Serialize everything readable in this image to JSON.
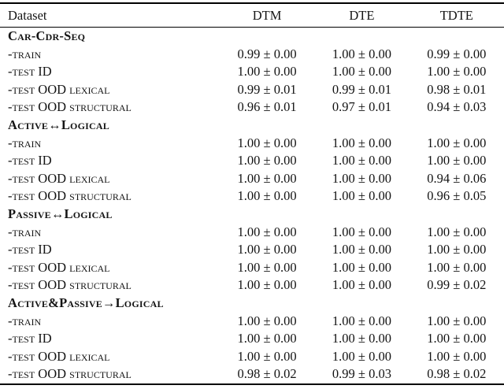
{
  "table": {
    "columns": [
      "Dataset",
      "DTM",
      "DTE",
      "TDTE"
    ],
    "sections": [
      {
        "title": "Car-Cdr-Seq",
        "rows": [
          {
            "label": "-train",
            "dtm": "0.99 ± 0.00",
            "dte": "1.00 ± 0.00",
            "tdte": "0.99 ± 0.00"
          },
          {
            "label": "-test ID",
            "dtm": "1.00 ± 0.00",
            "dte": "1.00 ± 0.00",
            "tdte": "1.00 ± 0.00"
          },
          {
            "label": "-test OOD lexical",
            "dtm": "0.99 ± 0.01",
            "dte": "0.99 ± 0.01",
            "tdte": "0.98 ± 0.01"
          },
          {
            "label": "-test OOD structural",
            "dtm": "0.96 ± 0.01",
            "dte": "0.97 ± 0.01",
            "tdte": "0.94 ± 0.03"
          }
        ]
      },
      {
        "title": "Active↔Logical",
        "rows": [
          {
            "label": "-train",
            "dtm": "1.00 ± 0.00",
            "dte": "1.00 ± 0.00",
            "tdte": "1.00 ± 0.00"
          },
          {
            "label": "-test ID",
            "dtm": "1.00 ± 0.00",
            "dte": "1.00 ± 0.00",
            "tdte": "1.00 ± 0.00"
          },
          {
            "label": "-test OOD lexical",
            "dtm": "1.00 ± 0.00",
            "dte": "1.00 ± 0.00",
            "tdte": "0.94 ± 0.06"
          },
          {
            "label": "-test OOD structural",
            "dtm": "1.00 ± 0.00",
            "dte": "1.00 ± 0.00",
            "tdte": "0.96 ± 0.05"
          }
        ]
      },
      {
        "title": "Passive↔Logical",
        "rows": [
          {
            "label": "-train",
            "dtm": "1.00 ± 0.00",
            "dte": "1.00 ± 0.00",
            "tdte": "1.00 ± 0.00"
          },
          {
            "label": "-test ID",
            "dtm": "1.00 ± 0.00",
            "dte": "1.00 ± 0.00",
            "tdte": "1.00 ± 0.00"
          },
          {
            "label": "-test OOD lexical",
            "dtm": "1.00 ± 0.00",
            "dte": "1.00 ± 0.00",
            "tdte": "1.00 ± 0.00"
          },
          {
            "label": "-test OOD structural",
            "dtm": "1.00 ± 0.00",
            "dte": "1.00 ± 0.00",
            "tdte": "0.99 ± 0.02"
          }
        ]
      },
      {
        "title": "Active&Passive→Logical",
        "rows": [
          {
            "label": "-train",
            "dtm": "1.00 ± 0.00",
            "dte": "1.00 ± 0.00",
            "tdte": "1.00 ± 0.00"
          },
          {
            "label": "-test ID",
            "dtm": "1.00 ± 0.00",
            "dte": "1.00 ± 0.00",
            "tdte": "1.00 ± 0.00"
          },
          {
            "label": "-test OOD lexical",
            "dtm": "1.00 ± 0.00",
            "dte": "1.00 ± 0.00",
            "tdte": "1.00 ± 0.00"
          },
          {
            "label": "-test OOD structural",
            "dtm": "0.98 ± 0.02",
            "dte": "0.99 ± 0.03",
            "tdte": "0.98 ± 0.02"
          }
        ]
      }
    ]
  }
}
